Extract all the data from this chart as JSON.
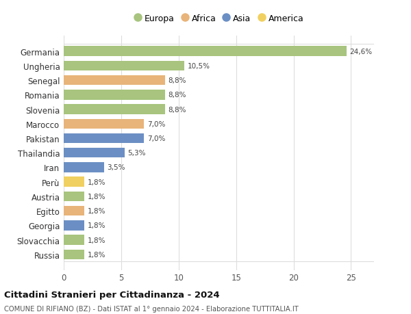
{
  "countries": [
    "Germania",
    "Ungheria",
    "Senegal",
    "Romania",
    "Slovenia",
    "Marocco",
    "Pakistan",
    "Thailandia",
    "Iran",
    "Perù",
    "Austria",
    "Egitto",
    "Georgia",
    "Slovacchia",
    "Russia"
  ],
  "values": [
    24.6,
    10.5,
    8.8,
    8.8,
    8.8,
    7.0,
    7.0,
    5.3,
    3.5,
    1.8,
    1.8,
    1.8,
    1.8,
    1.8,
    1.8
  ],
  "labels": [
    "24,6%",
    "10,5%",
    "8,8%",
    "8,8%",
    "8,8%",
    "7,0%",
    "7,0%",
    "5,3%",
    "3,5%",
    "1,8%",
    "1,8%",
    "1,8%",
    "1,8%",
    "1,8%",
    "1,8%"
  ],
  "continents": [
    "Europa",
    "Europa",
    "Africa",
    "Europa",
    "Europa",
    "Africa",
    "Asia",
    "Asia",
    "Asia",
    "America",
    "Europa",
    "Africa",
    "Asia",
    "Europa",
    "Europa"
  ],
  "colors": {
    "Europa": "#a8c47e",
    "Africa": "#e8b47a",
    "Asia": "#6b8fc4",
    "America": "#f0d060"
  },
  "legend_order": [
    "Europa",
    "Africa",
    "Asia",
    "America"
  ],
  "title": "Cittadini Stranieri per Cittadinanza - 2024",
  "subtitle": "COMUNE DI RIFIANO (BZ) - Dati ISTAT al 1° gennaio 2024 - Elaborazione TUTTITALIA.IT",
  "xlim": [
    0,
    27
  ],
  "xticks": [
    0,
    5,
    10,
    15,
    20,
    25
  ],
  "background_color": "#ffffff",
  "grid_color": "#dddddd",
  "bar_height": 0.68
}
